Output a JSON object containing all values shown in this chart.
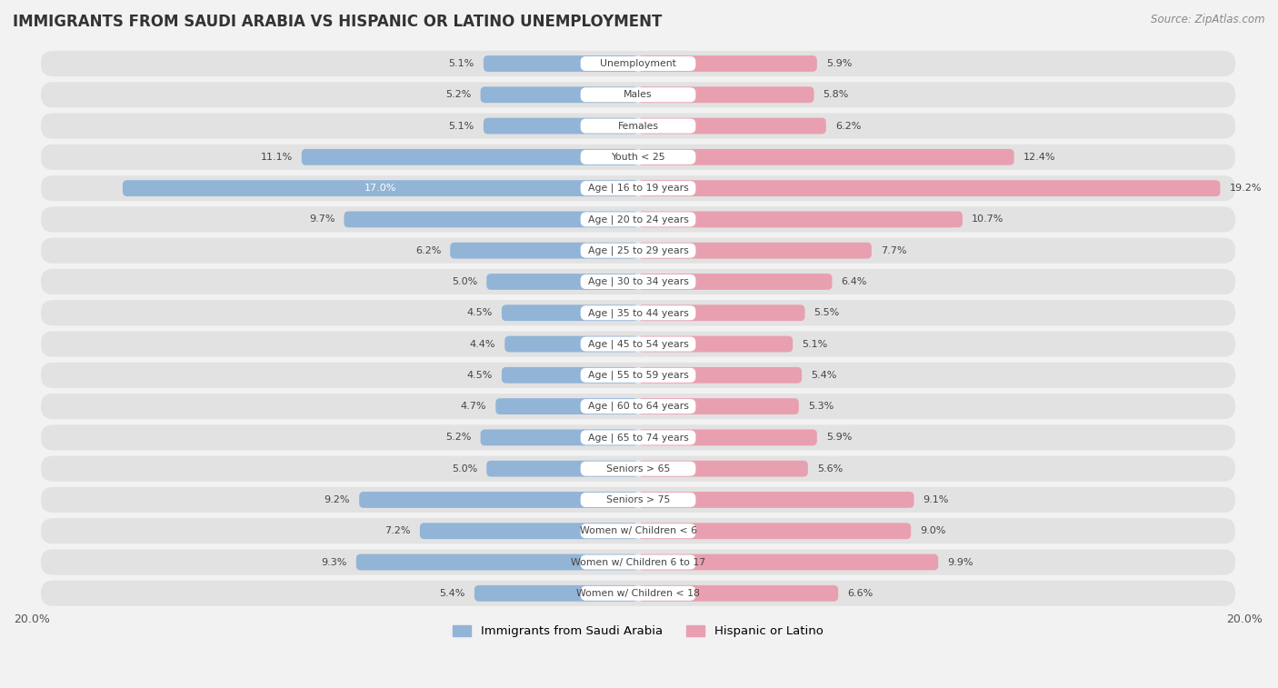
{
  "title": "IMMIGRANTS FROM SAUDI ARABIA VS HISPANIC OR LATINO UNEMPLOYMENT",
  "source": "Source: ZipAtlas.com",
  "categories": [
    "Unemployment",
    "Males",
    "Females",
    "Youth < 25",
    "Age | 16 to 19 years",
    "Age | 20 to 24 years",
    "Age | 25 to 29 years",
    "Age | 30 to 34 years",
    "Age | 35 to 44 years",
    "Age | 45 to 54 years",
    "Age | 55 to 59 years",
    "Age | 60 to 64 years",
    "Age | 65 to 74 years",
    "Seniors > 65",
    "Seniors > 75",
    "Women w/ Children < 6",
    "Women w/ Children 6 to 17",
    "Women w/ Children < 18"
  ],
  "saudi_values": [
    5.1,
    5.2,
    5.1,
    11.1,
    17.0,
    9.7,
    6.2,
    5.0,
    4.5,
    4.4,
    4.5,
    4.7,
    5.2,
    5.0,
    9.2,
    7.2,
    9.3,
    5.4
  ],
  "hispanic_values": [
    5.9,
    5.8,
    6.2,
    12.4,
    19.2,
    10.7,
    7.7,
    6.4,
    5.5,
    5.1,
    5.4,
    5.3,
    5.9,
    5.6,
    9.1,
    9.0,
    9.9,
    6.6
  ],
  "saudi_color": "#92b4d7",
  "saudi_color_dark": "#5a8fc7",
  "hispanic_color": "#e8a0b0",
  "hispanic_color_dark": "#d06080",
  "background_color": "#f2f2f2",
  "row_bg_color": "#e2e2e2",
  "bar_bg_color": "#f8f8f8",
  "xlim": 20.0,
  "legend_saudi": "Immigrants from Saudi Arabia",
  "legend_hispanic": "Hispanic or Latino",
  "label_box_color": "#ffffff"
}
